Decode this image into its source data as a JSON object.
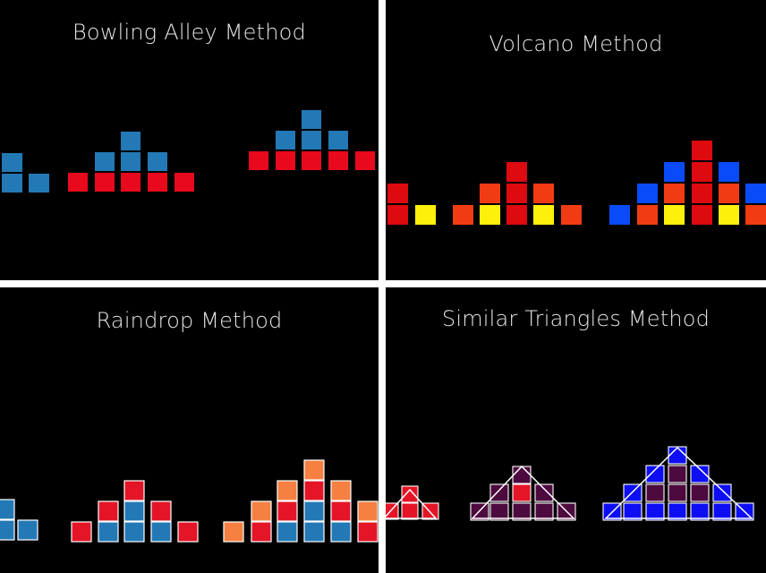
{
  "panels": [
    {
      "id": "bowling",
      "title": "Bowling Alley Method",
      "groups": [
        {
          "label": "group-1",
          "cubes": [
            {
              "c": "blue",
              "n": 2
            },
            {
              "c": "blue",
              "n": 1
            }
          ]
        },
        {
          "label": "group-2",
          "cubes": [
            {
              "c": "red",
              "n": 1
            },
            {
              "c": "red+blue",
              "n": 2
            },
            {
              "c": "red+blue2",
              "n": 3
            },
            {
              "c": "red+blue",
              "n": 2
            },
            {
              "c": "red",
              "n": 1
            }
          ]
        },
        {
          "label": "group-3",
          "cubes": [
            {
              "c": "red",
              "n": 1
            },
            {
              "c": "red+blue",
              "n": 2
            },
            {
              "c": "red+blue2",
              "n": 3
            },
            {
              "c": "red+blue",
              "n": 2
            },
            {
              "c": "red",
              "n": 1
            }
          ]
        }
      ]
    },
    {
      "id": "volcano",
      "title": "Volcano Method"
    },
    {
      "id": "raindrop",
      "title": "Raindrop Method"
    },
    {
      "id": "triangles",
      "title": "Similar Triangles Method"
    }
  ],
  "colors": {
    "background": "#000000",
    "divider": "#ffffff",
    "steel_blue": "#2379b6",
    "red": "#e8091d",
    "volcano_red": "#dd0a0f",
    "volcano_orange": "#f13b13",
    "yellow": "#fdf00a",
    "bright_blue": "#0a4bf8",
    "raindrop_red": "#e41526",
    "raindrop_orange": "#f58042",
    "plum": "#4d0a3f",
    "royal_blue": "#0e0ef5",
    "outline": "#ffffff"
  }
}
